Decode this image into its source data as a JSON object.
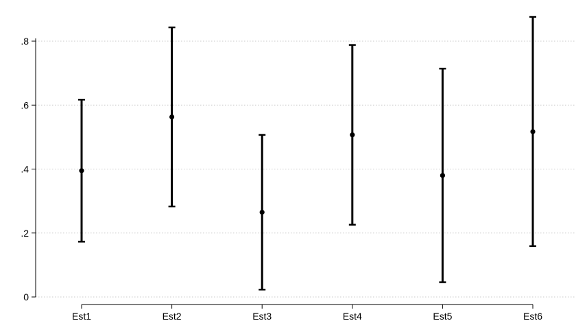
{
  "chart_data": {
    "type": "scatter",
    "title": "",
    "xlabel": "",
    "ylabel": "",
    "categories": [
      "Est1",
      "Est2",
      "Est3",
      "Est4",
      "Est5",
      "Est6"
    ],
    "series": [
      {
        "estimate": [
          0.395,
          0.563,
          0.265,
          0.507,
          0.38,
          0.517
        ],
        "lower": [
          0.173,
          0.283,
          0.023,
          0.226,
          0.046,
          0.159
        ],
        "upper": [
          0.617,
          0.843,
          0.507,
          0.788,
          0.714,
          0.876
        ]
      }
    ],
    "yticks": [
      {
        "value": 0,
        "label": "0"
      },
      {
        "value": 0.2,
        "label": ".2"
      },
      {
        "value": 0.4,
        "label": ".4"
      },
      {
        "value": 0.6,
        "label": ".6"
      },
      {
        "value": 0.8,
        "label": ".8"
      }
    ],
    "ylim": [
      0,
      0.8
    ],
    "grid": true,
    "legend": "none"
  }
}
